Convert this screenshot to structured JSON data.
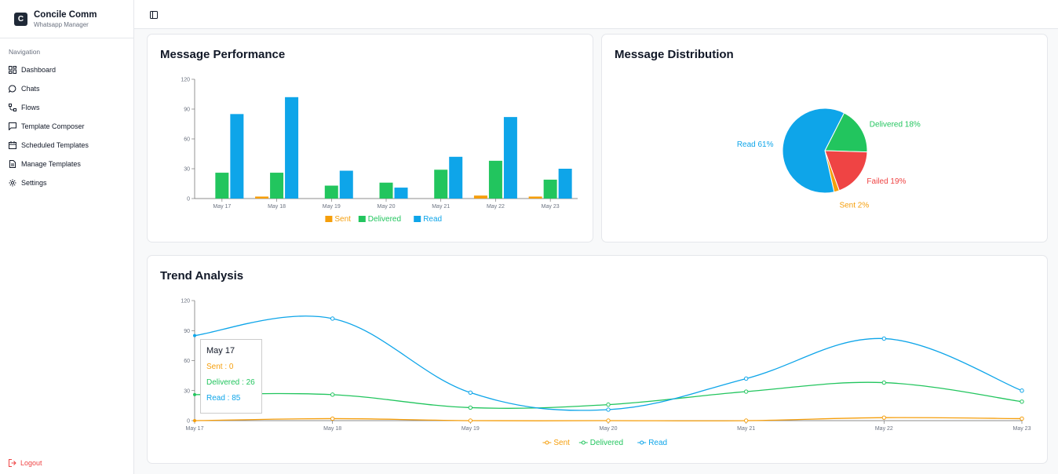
{
  "brand": {
    "logo_letter": "C",
    "name": "Concile Comm",
    "subtitle": "Whatsapp Manager"
  },
  "sidebar": {
    "heading": "Navigation",
    "items": [
      {
        "label": "Dashboard",
        "icon": "grid-icon"
      },
      {
        "label": "Chats",
        "icon": "chat-bubble-icon"
      },
      {
        "label": "Flows",
        "icon": "flow-icon"
      },
      {
        "label": "Template Composer",
        "icon": "message-square-icon"
      },
      {
        "label": "Scheduled Templates",
        "icon": "calendar-icon"
      },
      {
        "label": "Manage Templates",
        "icon": "file-text-icon"
      },
      {
        "label": "Settings",
        "icon": "gear-icon"
      }
    ],
    "logout_label": "Logout"
  },
  "colors": {
    "sent": "#f59e0b",
    "delivered": "#22c55e",
    "read": "#0ea5e9",
    "failed": "#ef4444",
    "logout": "#ef4444"
  },
  "performance": {
    "title": "Message Performance"
  },
  "distribution": {
    "title": "Message Distribution"
  },
  "trend": {
    "title": "Trend Analysis"
  },
  "tooltip": {
    "title": "May 17",
    "sent": "Sent : 0",
    "delivered": "Delivered : 26",
    "read": "Read : 85"
  },
  "chart_data": [
    {
      "type": "bar",
      "title": "Message Performance",
      "categories": [
        "May 17",
        "May 18",
        "May 19",
        "May 20",
        "May 21",
        "May 22",
        "May 23"
      ],
      "ylim": [
        0,
        120
      ],
      "yticks": [
        0,
        30,
        60,
        90,
        120
      ],
      "series": [
        {
          "name": "Sent",
          "values": [
            0,
            2,
            0,
            0,
            0,
            3,
            2
          ]
        },
        {
          "name": "Delivered",
          "values": [
            26,
            26,
            13,
            16,
            29,
            38,
            19
          ]
        },
        {
          "name": "Read",
          "values": [
            85,
            102,
            28,
            11,
            42,
            82,
            30
          ]
        }
      ],
      "legend": "bottom"
    },
    {
      "type": "pie",
      "title": "Message Distribution",
      "slices": [
        {
          "name": "Delivered",
          "value": 18,
          "label": "Delivered 18%"
        },
        {
          "name": "Failed",
          "value": 19,
          "label": "Failed 19%"
        },
        {
          "name": "Sent",
          "value": 2,
          "label": "Sent 2%"
        },
        {
          "name": "Read",
          "value": 61,
          "label": "Read 61%"
        }
      ]
    },
    {
      "type": "line",
      "title": "Trend Analysis",
      "categories": [
        "May 17",
        "May 18",
        "May 19",
        "May 20",
        "May 21",
        "May 22",
        "May 23"
      ],
      "ylim": [
        0,
        120
      ],
      "yticks": [
        0,
        30,
        60,
        90,
        120
      ],
      "series": [
        {
          "name": "Sent",
          "values": [
            0,
            2,
            0,
            0,
            0,
            3,
            2
          ]
        },
        {
          "name": "Delivered",
          "values": [
            26,
            26,
            13,
            16,
            29,
            38,
            19
          ]
        },
        {
          "name": "Read",
          "values": [
            85,
            102,
            28,
            11,
            42,
            82,
            30
          ]
        }
      ],
      "legend": "bottom"
    }
  ]
}
